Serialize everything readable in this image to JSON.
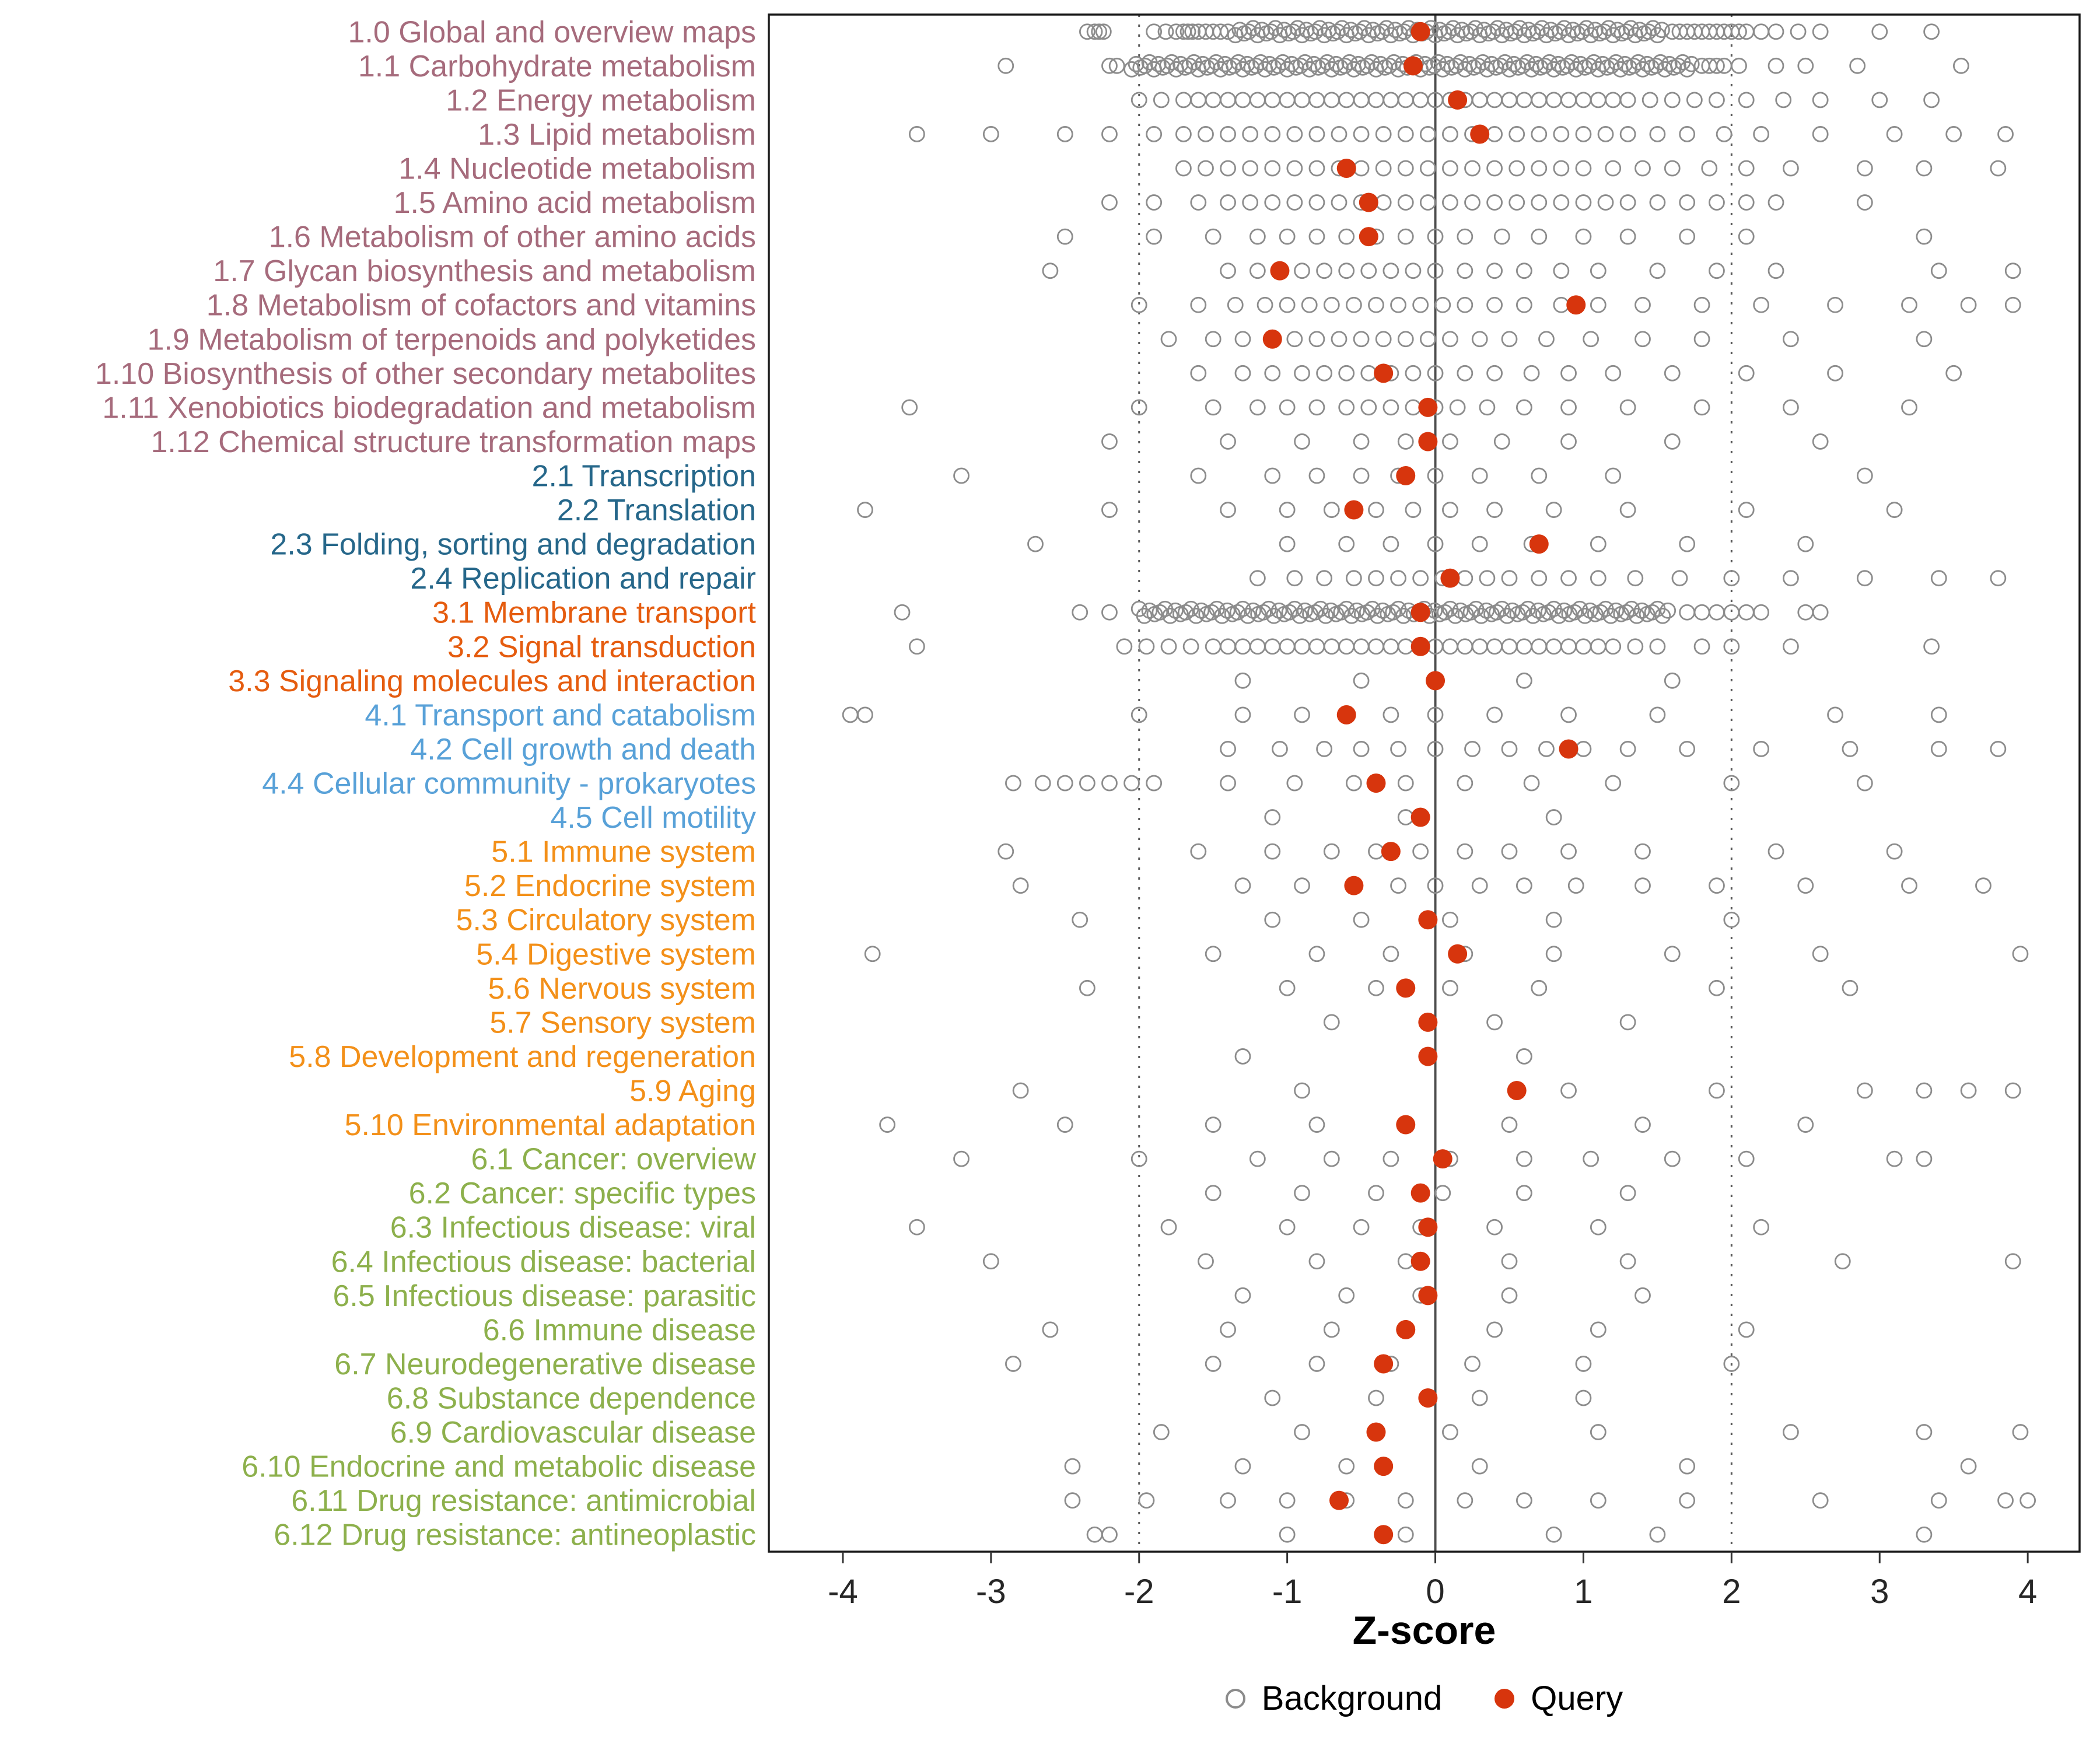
{
  "chart_data": {
    "type": "scatter",
    "title": "",
    "xlabel": "Z-score",
    "ylabel": "",
    "xlim": [
      -4.5,
      4.35
    ],
    "x_ticks": [
      -4,
      -3,
      -2,
      -1,
      0,
      1,
      2,
      3,
      4
    ],
    "grid": false,
    "guides": {
      "zero_line_x": 0,
      "dotted_lines_x": [
        -2,
        2
      ]
    },
    "legend": {
      "position": "bottom",
      "items": [
        {
          "label": "Background",
          "marker": "open-circle",
          "color": "#8C8C8C"
        },
        {
          "label": "Query",
          "marker": "filled-circle",
          "color": "#D7350D"
        }
      ]
    },
    "group_colors": {
      "1": "#A66B7C",
      "2": "#26678A",
      "3": "#E55C0F",
      "4": "#58A1D8",
      "5": "#F39019",
      "6": "#8DB04C"
    },
    "rows": [
      {
        "label": "1.0 Global and overview maps",
        "group": "1",
        "query": -0.1,
        "bg_dense": [
          -1.35,
          1.55,
          0.03
        ],
        "bg": [
          -2.35,
          -2.3,
          -2.27,
          -2.24,
          -1.9,
          -1.82,
          -1.75,
          -1.7,
          -1.67,
          -1.64,
          -1.6,
          -1.55,
          -1.5,
          -1.45,
          -1.4,
          1.6,
          1.65,
          1.7,
          1.75,
          1.8,
          1.85,
          1.9,
          1.95,
          2.0,
          2.05,
          2.1,
          2.2,
          2.3,
          2.45,
          2.6,
          3.0,
          3.35
        ]
      },
      {
        "label": "1.1 Carbohydrate metabolism",
        "group": "1",
        "query": -0.15,
        "bg_dense": [
          -2.05,
          1.75,
          0.03
        ],
        "bg": [
          -2.9,
          -2.2,
          -2.15,
          1.8,
          1.85,
          1.9,
          1.95,
          2.05,
          2.3,
          2.5,
          2.85,
          3.55
        ]
      },
      {
        "label": "1.2 Energy metabolism",
        "group": "1",
        "query": 0.15,
        "bg": [
          -2.0,
          -1.85,
          -1.7,
          -1.6,
          -1.5,
          -1.4,
          -1.3,
          -1.2,
          -1.1,
          -1.0,
          -0.9,
          -0.8,
          -0.7,
          -0.6,
          -0.5,
          -0.4,
          -0.3,
          -0.2,
          -0.1,
          0.0,
          0.1,
          0.2,
          0.3,
          0.4,
          0.5,
          0.6,
          0.7,
          0.8,
          0.9,
          1.0,
          1.1,
          1.2,
          1.3,
          1.45,
          1.6,
          1.75,
          1.9,
          2.1,
          2.35,
          2.6,
          3.0,
          3.35
        ]
      },
      {
        "label": "1.3 Lipid metabolism",
        "group": "1",
        "query": 0.3,
        "bg": [
          -3.5,
          -3.0,
          -2.5,
          -2.2,
          -1.9,
          -1.7,
          -1.55,
          -1.4,
          -1.25,
          -1.1,
          -0.95,
          -0.8,
          -0.65,
          -0.5,
          -0.35,
          -0.2,
          -0.05,
          0.1,
          0.25,
          0.4,
          0.55,
          0.7,
          0.85,
          1.0,
          1.15,
          1.3,
          1.5,
          1.7,
          1.95,
          2.2,
          2.6,
          3.1,
          3.5,
          3.85
        ]
      },
      {
        "label": "1.4 Nucleotide metabolism",
        "group": "1",
        "query": -0.6,
        "bg": [
          -1.7,
          -1.55,
          -1.4,
          -1.25,
          -1.1,
          -0.95,
          -0.8,
          -0.65,
          -0.5,
          -0.35,
          -0.2,
          -0.05,
          0.1,
          0.25,
          0.4,
          0.55,
          0.7,
          0.85,
          1.0,
          1.2,
          1.4,
          1.6,
          1.85,
          2.1,
          2.4,
          2.9,
          3.3,
          3.8
        ]
      },
      {
        "label": "1.5 Amino acid metabolism",
        "group": "1",
        "query": -0.45,
        "bg": [
          -2.2,
          -1.9,
          -1.6,
          -1.4,
          -1.25,
          -1.1,
          -0.95,
          -0.8,
          -0.65,
          -0.5,
          -0.35,
          -0.2,
          -0.05,
          0.1,
          0.25,
          0.4,
          0.55,
          0.7,
          0.85,
          1.0,
          1.15,
          1.3,
          1.5,
          1.7,
          1.9,
          2.1,
          2.3,
          2.9
        ]
      },
      {
        "label": "1.6 Metabolism of other amino acids",
        "group": "1",
        "query": -0.45,
        "bg": [
          -2.5,
          -1.9,
          -1.5,
          -1.2,
          -1.0,
          -0.8,
          -0.6,
          -0.4,
          -0.2,
          0.0,
          0.2,
          0.45,
          0.7,
          1.0,
          1.3,
          1.7,
          2.1,
          3.3
        ]
      },
      {
        "label": "1.7 Glycan biosynthesis and metabolism",
        "group": "1",
        "query": -1.05,
        "bg": [
          -2.6,
          -1.4,
          -1.2,
          -1.05,
          -0.9,
          -0.75,
          -0.6,
          -0.45,
          -0.3,
          -0.15,
          0.0,
          0.2,
          0.4,
          0.6,
          0.85,
          1.1,
          1.5,
          1.9,
          2.3,
          3.4,
          3.9
        ]
      },
      {
        "label": "1.8 Metabolism of cofactors and vitamins",
        "group": "1",
        "query": 0.95,
        "bg": [
          -2.0,
          -1.6,
          -1.35,
          -1.15,
          -1.0,
          -0.85,
          -0.7,
          -0.55,
          -0.4,
          -0.25,
          -0.1,
          0.05,
          0.2,
          0.4,
          0.6,
          0.85,
          1.1,
          1.4,
          1.8,
          2.2,
          2.7,
          3.2,
          3.6,
          3.9
        ]
      },
      {
        "label": "1.9 Metabolism of terpenoids and polyketides",
        "group": "1",
        "query": -1.1,
        "bg": [
          -1.8,
          -1.5,
          -1.3,
          -1.1,
          -0.95,
          -0.8,
          -0.65,
          -0.5,
          -0.35,
          -0.2,
          -0.05,
          0.1,
          0.3,
          0.5,
          0.75,
          1.05,
          1.4,
          1.8,
          2.4,
          3.3
        ]
      },
      {
        "label": "1.10 Biosynthesis of other secondary metabolites",
        "group": "1",
        "query": -0.35,
        "bg": [
          -1.6,
          -1.3,
          -1.1,
          -0.9,
          -0.75,
          -0.6,
          -0.45,
          -0.3,
          -0.15,
          0.0,
          0.2,
          0.4,
          0.65,
          0.9,
          1.2,
          1.6,
          2.1,
          2.7,
          3.5
        ]
      },
      {
        "label": "1.11 Xenobiotics biodegradation and metabolism",
        "group": "1",
        "query": -0.05,
        "bg": [
          -3.55,
          -2.0,
          -1.5,
          -1.2,
          -1.0,
          -0.8,
          -0.6,
          -0.45,
          -0.3,
          -0.15,
          0.0,
          0.15,
          0.35,
          0.6,
          0.9,
          1.3,
          1.8,
          2.4,
          3.2
        ]
      },
      {
        "label": "1.12 Chemical structure transformation maps",
        "group": "1",
        "query": -0.05,
        "bg": [
          -2.2,
          -1.4,
          -0.9,
          -0.5,
          -0.2,
          0.1,
          0.45,
          0.9,
          1.6,
          2.6
        ]
      },
      {
        "label": "2.1 Transcription",
        "group": "2",
        "query": -0.2,
        "bg": [
          -3.2,
          -1.6,
          -1.1,
          -0.8,
          -0.5,
          -0.25,
          0.0,
          0.3,
          0.7,
          1.2,
          2.9
        ]
      },
      {
        "label": "2.2 Translation",
        "group": "2",
        "query": -0.55,
        "bg": [
          -3.85,
          -2.2,
          -1.4,
          -1.0,
          -0.7,
          -0.4,
          -0.15,
          0.1,
          0.4,
          0.8,
          1.3,
          2.1,
          3.1
        ]
      },
      {
        "label": "2.3 Folding, sorting and degradation",
        "group": "2",
        "query": 0.7,
        "bg": [
          -2.7,
          -1.0,
          -0.6,
          -0.3,
          0.0,
          0.3,
          0.65,
          1.1,
          1.7,
          2.5
        ]
      },
      {
        "label": "2.4 Replication and repair",
        "group": "2",
        "query": 0.1,
        "bg": [
          -1.2,
          -0.95,
          -0.75,
          -0.55,
          -0.4,
          -0.25,
          -0.1,
          0.05,
          0.2,
          0.35,
          0.5,
          0.7,
          0.9,
          1.1,
          1.35,
          1.65,
          2.0,
          2.4,
          2.9,
          3.4,
          3.8
        ]
      },
      {
        "label": "3.1 Membrane transport",
        "group": "3",
        "query": -0.1,
        "bg_dense": [
          -2.0,
          1.6,
          0.035
        ],
        "bg": [
          -3.6,
          -2.4,
          -2.2,
          1.7,
          1.8,
          1.9,
          2.0,
          2.1,
          2.2,
          2.5,
          2.6
        ]
      },
      {
        "label": "3.2 Signal transduction",
        "group": "3",
        "query": -0.1,
        "bg": [
          -3.5,
          -2.1,
          -1.95,
          -1.8,
          -1.65,
          -1.5,
          -1.4,
          -1.3,
          -1.2,
          -1.1,
          -1.0,
          -0.9,
          -0.8,
          -0.7,
          -0.6,
          -0.5,
          -0.4,
          -0.3,
          -0.2,
          -0.1,
          0.0,
          0.1,
          0.2,
          0.3,
          0.4,
          0.5,
          0.6,
          0.7,
          0.8,
          0.9,
          1.0,
          1.1,
          1.2,
          1.35,
          1.5,
          1.8,
          2.0,
          2.4,
          3.35
        ]
      },
      {
        "label": "3.3 Signaling molecules and interaction",
        "group": "3",
        "query": 0.0,
        "bg": [
          -1.3,
          -0.5,
          0.6,
          1.6
        ]
      },
      {
        "label": "4.1 Transport and catabolism",
        "group": "4",
        "query": -0.6,
        "bg": [
          -3.95,
          -3.85,
          -2.0,
          -1.3,
          -0.9,
          -0.6,
          -0.3,
          0.0,
          0.4,
          0.9,
          1.5,
          2.7,
          3.4
        ]
      },
      {
        "label": "4.2 Cell growth and death",
        "group": "4",
        "query": 0.9,
        "bg": [
          -1.4,
          -1.05,
          -0.75,
          -0.5,
          -0.25,
          0.0,
          0.25,
          0.5,
          0.75,
          1.0,
          1.3,
          1.7,
          2.2,
          2.8,
          3.4,
          3.8
        ]
      },
      {
        "label": "4.4 Cellular community - prokaryotes",
        "group": "4",
        "query": -0.4,
        "bg": [
          -2.85,
          -2.65,
          -2.5,
          -2.35,
          -2.2,
          -2.05,
          -1.9,
          -1.4,
          -0.95,
          -0.55,
          -0.2,
          0.2,
          0.65,
          1.2,
          2.0,
          2.9
        ]
      },
      {
        "label": "4.5 Cell motility",
        "group": "4",
        "query": -0.1,
        "bg": [
          -1.1,
          -0.2,
          0.8
        ]
      },
      {
        "label": "5.1 Immune system",
        "group": "5",
        "query": -0.3,
        "bg": [
          -2.9,
          -1.6,
          -1.1,
          -0.7,
          -0.4,
          -0.1,
          0.2,
          0.5,
          0.9,
          1.4,
          2.3,
          3.1
        ]
      },
      {
        "label": "5.2 Endocrine system",
        "group": "5",
        "query": -0.55,
        "bg": [
          -2.8,
          -1.3,
          -0.9,
          -0.55,
          -0.25,
          0.0,
          0.3,
          0.6,
          0.95,
          1.4,
          1.9,
          2.5,
          3.2,
          3.7
        ]
      },
      {
        "label": "5.3 Circulatory system",
        "group": "5",
        "query": -0.05,
        "bg": [
          -2.4,
          -1.1,
          -0.5,
          0.1,
          0.8,
          2.0
        ]
      },
      {
        "label": "5.4 Digestive system",
        "group": "5",
        "query": 0.15,
        "bg": [
          -3.8,
          -1.5,
          -0.8,
          -0.3,
          0.2,
          0.8,
          1.6,
          2.6,
          3.95
        ]
      },
      {
        "label": "5.6 Nervous system",
        "group": "5",
        "query": -0.2,
        "bg": [
          -2.35,
          -1.0,
          -0.4,
          0.1,
          0.7,
          1.9,
          2.8
        ]
      },
      {
        "label": "5.7 Sensory system",
        "group": "5",
        "query": -0.05,
        "bg": [
          -0.7,
          0.4,
          1.3
        ]
      },
      {
        "label": "5.8 Development and regeneration",
        "group": "5",
        "query": -0.05,
        "bg": [
          -1.3,
          0.6
        ]
      },
      {
        "label": "5.9 Aging",
        "group": "5",
        "query": 0.55,
        "bg": [
          -2.8,
          -0.9,
          0.9,
          1.9,
          2.9,
          3.3,
          3.6,
          3.9
        ]
      },
      {
        "label": "5.10 Environmental adaptation",
        "group": "5",
        "query": -0.2,
        "bg": [
          -3.7,
          -2.5,
          -1.5,
          -0.8,
          -0.2,
          0.5,
          1.4,
          2.5
        ]
      },
      {
        "label": "6.1 Cancer: overview",
        "group": "6",
        "query": 0.05,
        "bg": [
          -3.2,
          -2.0,
          -1.2,
          -0.7,
          -0.3,
          0.1,
          0.6,
          1.05,
          1.6,
          2.1,
          3.1,
          3.3
        ]
      },
      {
        "label": "6.2 Cancer: specific types",
        "group": "6",
        "query": -0.1,
        "bg": [
          -1.5,
          -0.9,
          -0.4,
          0.05,
          0.6,
          1.3
        ]
      },
      {
        "label": "6.3 Infectious disease: viral",
        "group": "6",
        "query": -0.05,
        "bg": [
          -3.5,
          -1.8,
          -1.0,
          -0.5,
          -0.1,
          0.4,
          1.1,
          2.2
        ]
      },
      {
        "label": "6.4 Infectious disease: bacterial",
        "group": "6",
        "query": -0.1,
        "bg": [
          -3.0,
          -1.55,
          -0.8,
          -0.2,
          0.5,
          1.3,
          2.75,
          3.9
        ]
      },
      {
        "label": "6.5 Infectious disease: parasitic",
        "group": "6",
        "query": -0.05,
        "bg": [
          -1.3,
          -0.6,
          -0.1,
          0.5,
          1.4
        ]
      },
      {
        "label": "6.6 Immune disease",
        "group": "6",
        "query": -0.2,
        "bg": [
          -2.6,
          -1.4,
          -0.7,
          -0.2,
          0.4,
          1.1,
          2.1
        ]
      },
      {
        "label": "6.7 Neurodegenerative disease",
        "group": "6",
        "query": -0.35,
        "bg": [
          -2.85,
          -1.5,
          -0.8,
          -0.3,
          0.25,
          1.0,
          2.0
        ]
      },
      {
        "label": "6.8 Substance dependence",
        "group": "6",
        "query": -0.05,
        "bg": [
          -1.1,
          -0.4,
          0.3,
          1.0
        ]
      },
      {
        "label": "6.9 Cardiovascular disease",
        "group": "6",
        "query": -0.4,
        "bg": [
          -1.85,
          -0.9,
          0.1,
          1.1,
          2.4,
          3.3,
          3.95
        ]
      },
      {
        "label": "6.10 Endocrine and metabolic disease",
        "group": "6",
        "query": -0.35,
        "bg": [
          -2.45,
          -1.3,
          -0.6,
          0.3,
          1.7,
          3.6
        ]
      },
      {
        "label": "6.11 Drug resistance: antimicrobial",
        "group": "6",
        "query": -0.65,
        "bg": [
          -2.45,
          -1.95,
          -1.4,
          -1.0,
          -0.6,
          -0.2,
          0.2,
          0.6,
          1.1,
          1.7,
          2.6,
          3.4,
          3.85,
          4.0
        ]
      },
      {
        "label": "6.12 Drug resistance: antineoplastic",
        "group": "6",
        "query": -0.35,
        "bg": [
          -2.3,
          -2.2,
          -1.0,
          -0.2,
          0.8,
          1.5,
          3.3
        ]
      }
    ]
  }
}
